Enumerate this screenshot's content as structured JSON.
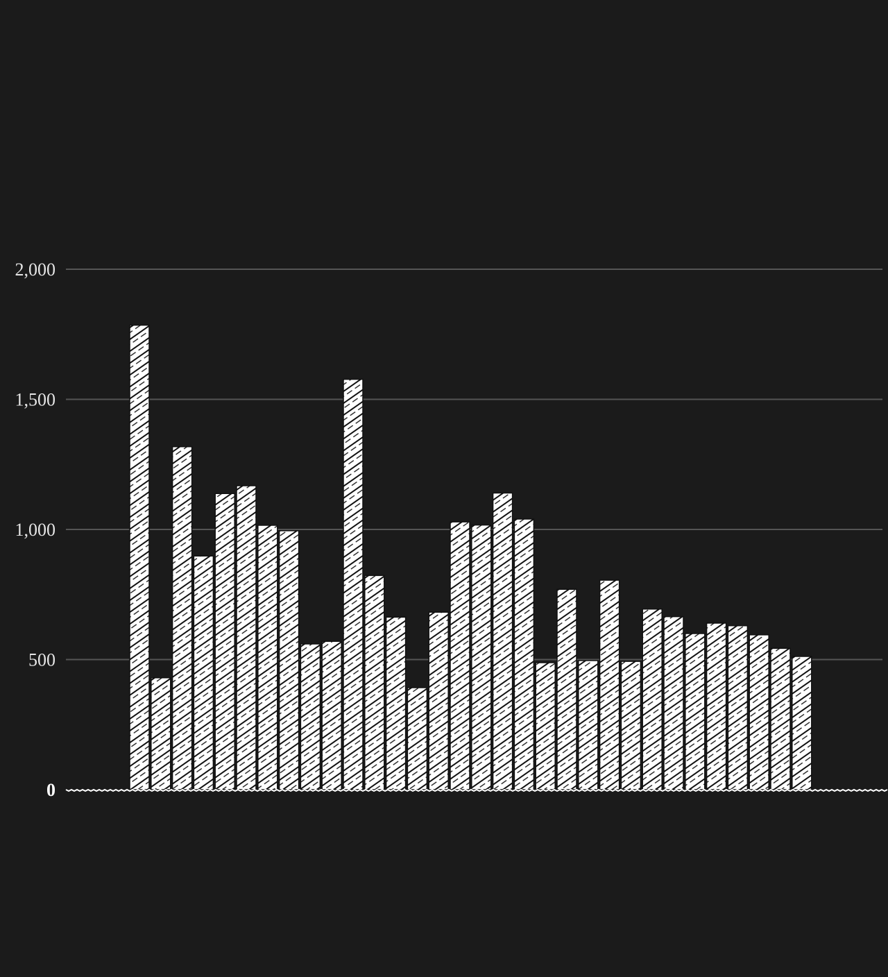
{
  "chart_data": {
    "type": "bar",
    "values": [
      1785,
      430,
      1318,
      898,
      1138,
      1168,
      1016,
      995,
      560,
      570,
      1577,
      823,
      663,
      392,
      682,
      1029,
      1017,
      1140,
      1040,
      488,
      770,
      496,
      805,
      493,
      694,
      665,
      600,
      640,
      630,
      595,
      543,
      512
    ],
    "ylim": [
      0,
      2000
    ],
    "yticks": [
      0,
      500,
      1000,
      1500,
      2000
    ],
    "ytick_labels": [
      "0",
      "500",
      "1,000",
      "1,500",
      "2,000"
    ],
    "grid": true,
    "title": "",
    "xlabel": "",
    "ylabel": "",
    "colors": {
      "background": "#1b1b1b",
      "bar_fill": "#ffffff",
      "bar_hatch": "#111111",
      "grid": "#555555",
      "baseline": "#ffffff",
      "text": "#e6e6e6"
    }
  }
}
